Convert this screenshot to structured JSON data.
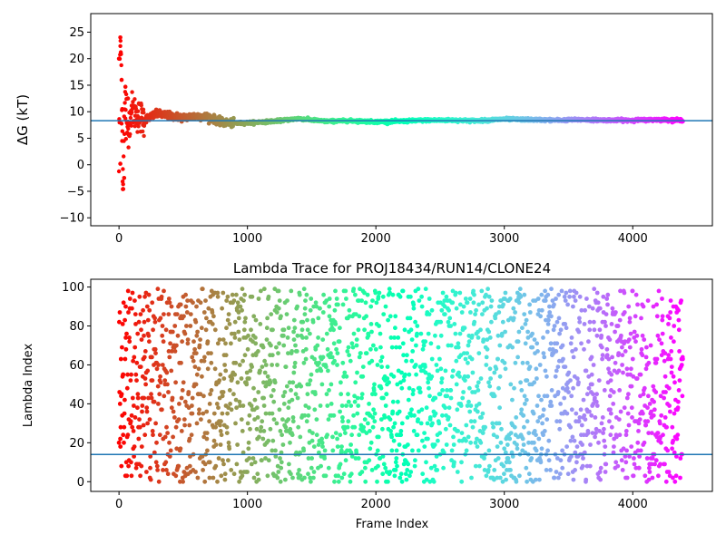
{
  "chart_data": [
    {
      "type": "scatter",
      "title": "",
      "xlabel": "",
      "ylabel": "ΔG (kT)",
      "xlim": [
        -220,
        4620
      ],
      "ylim": [
        -11.5,
        28.5
      ],
      "xticks": [
        0,
        1000,
        2000,
        3000,
        4000
      ],
      "yticks": [
        -10,
        -5,
        0,
        5,
        10,
        15,
        20,
        25
      ],
      "colormap": "rainbow (frame 0 red → frame 4400 violet)",
      "grid": false,
      "hline": {
        "y": 8.3,
        "color": "#1f77b4"
      },
      "series": [
        {
          "x": [
            0,
            10,
            20,
            30,
            40,
            50,
            60,
            80,
            100,
            150,
            200,
            300,
            400,
            500,
            600,
            700,
            800,
            900,
            1000,
            1200,
            1400,
            1600,
            1800,
            2000,
            2200,
            2400,
            2600,
            2800,
            3000,
            3200,
            3400,
            3600,
            3800,
            4000,
            4200,
            4390
          ],
          "values": [
            0,
            24.0,
            16.0,
            -2.0,
            5.5,
            11.5,
            6.2,
            8.0,
            10.5,
            9.2,
            8.6,
            9.6,
            9.2,
            8.9,
            9.2,
            9.0,
            8.0,
            7.8,
            7.9,
            8.2,
            8.7,
            8.2,
            8.3,
            8.1,
            8.2,
            8.4,
            8.4,
            8.3,
            8.6,
            8.5,
            8.4,
            8.5,
            8.4,
            8.4,
            8.5,
            8.4
          ]
        }
      ]
    },
    {
      "type": "scatter",
      "title": "Lambda Trace for PROJ18434/RUN14/CLONE24",
      "xlabel": "Frame Index",
      "ylabel": "Lambda Index",
      "xlim": [
        -220,
        4620
      ],
      "ylim": [
        -5,
        104
      ],
      "xticks": [
        0,
        1000,
        2000,
        3000,
        4000
      ],
      "yticks": [
        0,
        20,
        40,
        60,
        80,
        100
      ],
      "colormap": "rainbow (frame 0 red → frame 4400 violet)",
      "grid": false,
      "hline": {
        "y": 14,
        "color": "#1f77b4"
      },
      "n_points": 2300,
      "value_range": [
        0,
        99
      ],
      "distribution": "uniform"
    }
  ]
}
